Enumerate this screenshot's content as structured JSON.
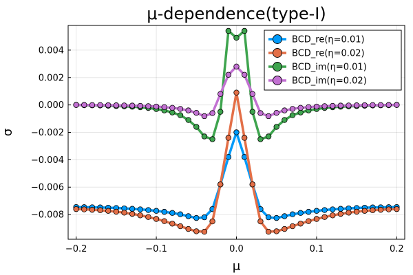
{
  "chart_data": {
    "type": "line",
    "title": "μ-dependence(type-I)",
    "xlabel": "μ",
    "ylabel": "σ",
    "xlim": [
      -0.21,
      0.21
    ],
    "ylim": [
      -0.0098,
      0.0058
    ],
    "x_ticks": [
      -0.2,
      -0.1,
      0.0,
      0.1,
      0.2
    ],
    "x_tick_labels": [
      "−0.2",
      "−0.1",
      "0.0",
      "0.1",
      "0.2"
    ],
    "y_ticks": [
      -0.008,
      -0.006,
      -0.004,
      -0.002,
      0.0,
      0.002,
      0.004
    ],
    "y_tick_labels": [
      "−0.008",
      "−0.006",
      "−0.004",
      "−0.002",
      "0.000",
      "0.002",
      "0.004"
    ],
    "grid": true,
    "legend_position": "top-right",
    "x": [
      -0.2,
      -0.19,
      -0.18,
      -0.17,
      -0.16,
      -0.15,
      -0.14,
      -0.13,
      -0.12,
      -0.11,
      -0.1,
      -0.09,
      -0.08,
      -0.07,
      -0.06,
      -0.05,
      -0.04,
      -0.03,
      -0.02,
      -0.01,
      0.0,
      0.01,
      0.02,
      0.03,
      0.04,
      0.05,
      0.06,
      0.07,
      0.08,
      0.09,
      0.1,
      0.11,
      0.12,
      0.13,
      0.14,
      0.15,
      0.16,
      0.17,
      0.18,
      0.19,
      0.2
    ],
    "series": [
      {
        "name": "BCD_re(η=0.01)",
        "color": "#009AFA",
        "values": [
          -0.00745,
          -0.00746,
          -0.00747,
          -0.00748,
          -0.0075,
          -0.00752,
          -0.00755,
          -0.00758,
          -0.00762,
          -0.00767,
          -0.00773,
          -0.0078,
          -0.00788,
          -0.00798,
          -0.00812,
          -0.00825,
          -0.0082,
          -0.0076,
          -0.0058,
          -0.0038,
          -0.002,
          -0.0038,
          -0.0058,
          -0.0076,
          -0.0082,
          -0.00825,
          -0.00812,
          -0.00798,
          -0.00788,
          -0.0078,
          -0.00773,
          -0.00767,
          -0.00762,
          -0.00758,
          -0.00755,
          -0.00752,
          -0.0075,
          -0.00748,
          -0.00747,
          -0.00746,
          -0.00745
        ]
      },
      {
        "name": "BCD_re(η=0.02)",
        "color": "#E36F47",
        "values": [
          -0.0076,
          -0.00762,
          -0.00765,
          -0.00768,
          -0.00773,
          -0.00779,
          -0.00786,
          -0.00795,
          -0.00806,
          -0.00818,
          -0.00832,
          -0.00848,
          -0.00866,
          -0.00885,
          -0.00905,
          -0.00922,
          -0.00925,
          -0.0085,
          -0.0058,
          -0.0024,
          0.0009,
          -0.0024,
          -0.0058,
          -0.0085,
          -0.00925,
          -0.00922,
          -0.00905,
          -0.00885,
          -0.00866,
          -0.00848,
          -0.00832,
          -0.00818,
          -0.00806,
          -0.00795,
          -0.00786,
          -0.00779,
          -0.00773,
          -0.00768,
          -0.00765,
          -0.00762,
          -0.0076
        ]
      },
      {
        "name": "BCD_im(η=0.01)",
        "color": "#3EA44E",
        "values": [
          0.0,
          -2e-05,
          -3e-05,
          -4e-05,
          -6e-05,
          -8e-05,
          -0.0001,
          -0.00013,
          -0.00017,
          -0.00022,
          -0.0003,
          -0.0004,
          -0.00055,
          -0.00075,
          -0.0011,
          -0.0016,
          -0.0023,
          -0.0025,
          -0.0005,
          0.0054,
          0.0049,
          0.0054,
          -0.0005,
          -0.0025,
          -0.0023,
          -0.0016,
          -0.0011,
          -0.00075,
          -0.00055,
          -0.0004,
          -0.0003,
          -0.00022,
          -0.00017,
          -0.00013,
          -0.0001,
          -8e-05,
          -6e-05,
          -4e-05,
          -3e-05,
          -2e-05,
          0.0
        ]
      },
      {
        "name": "BCD_im(η=0.02)",
        "color": "#C271D2",
        "values": [
          0.0,
          0.0,
          -1e-05,
          -1e-05,
          -2e-05,
          -3e-05,
          -4e-05,
          -5e-05,
          -7e-05,
          -9e-05,
          -0.00012,
          -0.00016,
          -0.00021,
          -0.00029,
          -0.0004,
          -0.00058,
          -0.00082,
          -0.0006,
          0.0008,
          0.0022,
          0.0028,
          0.0022,
          0.0008,
          -0.0006,
          -0.00082,
          -0.00058,
          -0.0004,
          -0.00029,
          -0.00021,
          -0.00016,
          -0.00012,
          -9e-05,
          -7e-05,
          -5e-05,
          -4e-05,
          -3e-05,
          -2e-05,
          -1e-05,
          -1e-05,
          0.0,
          0.0
        ]
      }
    ]
  }
}
